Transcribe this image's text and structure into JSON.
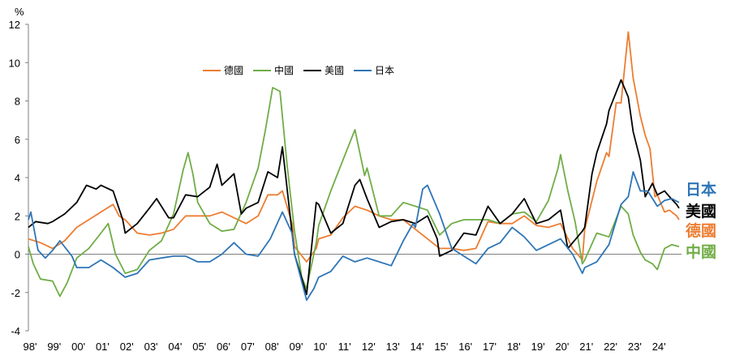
{
  "chart_data": {
    "type": "line",
    "ylabel": "%",
    "ylim": [
      -4,
      12
    ],
    "yticks": [
      -4,
      -2,
      0,
      2,
      4,
      6,
      8,
      10,
      12
    ],
    "categories": [
      "98'",
      "99'",
      "00'",
      "01'",
      "02'",
      "03'",
      "04'",
      "05'",
      "06'",
      "07'",
      "08'",
      "09'",
      "10'",
      "11'",
      "12'",
      "13'",
      "14'",
      "15'",
      "16'",
      "17'",
      "18'",
      "19'",
      "20'",
      "21'",
      "22'",
      "23'",
      "24'"
    ],
    "xlim": [
      1998.0,
      2025.0
    ],
    "grid": false,
    "legend": "top-left",
    "series": [
      {
        "name": "德國",
        "color": "#ED7D31",
        "points": [
          [
            1998.0,
            0.8
          ],
          [
            1998.5,
            0.6
          ],
          [
            1999.0,
            0.3
          ],
          [
            1999.5,
            0.7
          ],
          [
            2000.0,
            1.4
          ],
          [
            2000.5,
            1.8
          ],
          [
            2001.0,
            2.2
          ],
          [
            2001.5,
            2.6
          ],
          [
            2001.75,
            2.0
          ],
          [
            2002.0,
            1.8
          ],
          [
            2002.5,
            1.1
          ],
          [
            2003.0,
            1.0
          ],
          [
            2003.5,
            1.1
          ],
          [
            2004.0,
            1.3
          ],
          [
            2004.5,
            2.0
          ],
          [
            2005.0,
            2.0
          ],
          [
            2005.5,
            2.0
          ],
          [
            2006.0,
            2.2
          ],
          [
            2006.5,
            1.9
          ],
          [
            2007.0,
            1.6
          ],
          [
            2007.5,
            2.0
          ],
          [
            2007.9,
            3.1
          ],
          [
            2008.3,
            3.1
          ],
          [
            2008.5,
            3.3
          ],
          [
            2008.9,
            1.6
          ],
          [
            2009.0,
            0.4
          ],
          [
            2009.5,
            -0.4
          ],
          [
            2009.9,
            0.3
          ],
          [
            2010.0,
            0.8
          ],
          [
            2010.5,
            1.0
          ],
          [
            2011.0,
            1.9
          ],
          [
            2011.5,
            2.5
          ],
          [
            2012.0,
            2.3
          ],
          [
            2012.5,
            2.0
          ],
          [
            2013.0,
            1.8
          ],
          [
            2013.5,
            1.8
          ],
          [
            2014.0,
            1.3
          ],
          [
            2014.5,
            0.8
          ],
          [
            2015.0,
            0.3
          ],
          [
            2015.5,
            0.3
          ],
          [
            2016.0,
            0.2
          ],
          [
            2016.5,
            0.3
          ],
          [
            2017.0,
            1.7
          ],
          [
            2017.5,
            1.6
          ],
          [
            2018.0,
            1.6
          ],
          [
            2018.5,
            2.0
          ],
          [
            2019.0,
            1.5
          ],
          [
            2019.5,
            1.4
          ],
          [
            2020.0,
            1.6
          ],
          [
            2020.5,
            0.3
          ],
          [
            2020.9,
            -0.3
          ],
          [
            2021.0,
            1.3
          ],
          [
            2021.5,
            3.8
          ],
          [
            2021.9,
            5.3
          ],
          [
            2022.0,
            5.1
          ],
          [
            2022.3,
            7.9
          ],
          [
            2022.5,
            7.9
          ],
          [
            2022.8,
            11.6
          ],
          [
            2023.0,
            9.2
          ],
          [
            2023.3,
            7.2
          ],
          [
            2023.5,
            6.2
          ],
          [
            2023.7,
            5.5
          ],
          [
            2023.9,
            3.0
          ],
          [
            2024.0,
            3.1
          ],
          [
            2024.3,
            2.2
          ],
          [
            2024.5,
            2.3
          ],
          [
            2024.8,
            2.0
          ],
          [
            2024.9,
            1.8
          ]
        ]
      },
      {
        "name": "中國",
        "color": "#70AD47",
        "points": [
          [
            1998.0,
            0.4
          ],
          [
            1998.2,
            -0.5
          ],
          [
            1998.5,
            -1.3
          ],
          [
            1999.0,
            -1.4
          ],
          [
            1999.3,
            -2.2
          ],
          [
            1999.6,
            -1.5
          ],
          [
            2000.0,
            -0.2
          ],
          [
            2000.5,
            0.3
          ],
          [
            2001.0,
            1.1
          ],
          [
            2001.3,
            1.6
          ],
          [
            2001.6,
            0.0
          ],
          [
            2002.0,
            -1.0
          ],
          [
            2002.5,
            -0.8
          ],
          [
            2003.0,
            0.2
          ],
          [
            2003.5,
            0.7
          ],
          [
            2004.0,
            2.1
          ],
          [
            2004.4,
            4.4
          ],
          [
            2004.6,
            5.3
          ],
          [
            2004.8,
            4.2
          ],
          [
            2005.0,
            2.7
          ],
          [
            2005.5,
            1.6
          ],
          [
            2006.0,
            1.2
          ],
          [
            2006.5,
            1.3
          ],
          [
            2007.0,
            2.7
          ],
          [
            2007.5,
            4.5
          ],
          [
            2007.8,
            6.5
          ],
          [
            2008.1,
            8.7
          ],
          [
            2008.4,
            8.5
          ],
          [
            2008.7,
            4.6
          ],
          [
            2009.0,
            1.2
          ],
          [
            2009.3,
            -1.2
          ],
          [
            2009.5,
            -1.8
          ],
          [
            2009.9,
            0.6
          ],
          [
            2010.0,
            1.5
          ],
          [
            2010.5,
            3.3
          ],
          [
            2011.0,
            4.9
          ],
          [
            2011.5,
            6.5
          ],
          [
            2011.9,
            4.1
          ],
          [
            2012.0,
            4.5
          ],
          [
            2012.5,
            2.0
          ],
          [
            2013.0,
            2.0
          ],
          [
            2013.5,
            2.7
          ],
          [
            2014.0,
            2.5
          ],
          [
            2014.5,
            2.3
          ],
          [
            2015.0,
            1.0
          ],
          [
            2015.5,
            1.6
          ],
          [
            2016.0,
            1.8
          ],
          [
            2016.5,
            1.8
          ],
          [
            2017.0,
            1.8
          ],
          [
            2017.5,
            1.6
          ],
          [
            2018.0,
            2.1
          ],
          [
            2018.5,
            2.2
          ],
          [
            2019.0,
            1.7
          ],
          [
            2019.5,
            2.8
          ],
          [
            2019.9,
            4.5
          ],
          [
            2020.0,
            5.2
          ],
          [
            2020.3,
            3.3
          ],
          [
            2020.6,
            1.7
          ],
          [
            2020.9,
            -0.5
          ],
          [
            2021.0,
            -0.3
          ],
          [
            2021.5,
            1.1
          ],
          [
            2022.0,
            0.9
          ],
          [
            2022.5,
            2.5
          ],
          [
            2022.8,
            2.1
          ],
          [
            2023.0,
            1.0
          ],
          [
            2023.3,
            0.1
          ],
          [
            2023.5,
            -0.3
          ],
          [
            2023.8,
            -0.5
          ],
          [
            2024.0,
            -0.8
          ],
          [
            2024.3,
            0.3
          ],
          [
            2024.6,
            0.5
          ],
          [
            2024.9,
            0.4
          ]
        ]
      },
      {
        "name": "美國",
        "color": "#000000",
        "points": [
          [
            1998.0,
            1.4
          ],
          [
            1998.3,
            1.7
          ],
          [
            1998.8,
            1.6
          ],
          [
            1999.0,
            1.7
          ],
          [
            1999.5,
            2.1
          ],
          [
            2000.0,
            2.7
          ],
          [
            2000.4,
            3.6
          ],
          [
            2000.8,
            3.4
          ],
          [
            2001.0,
            3.6
          ],
          [
            2001.5,
            3.3
          ],
          [
            2001.9,
            1.8
          ],
          [
            2002.0,
            1.1
          ],
          [
            2002.5,
            1.6
          ],
          [
            2003.0,
            2.4
          ],
          [
            2003.3,
            2.9
          ],
          [
            2003.8,
            1.9
          ],
          [
            2004.0,
            1.9
          ],
          [
            2004.5,
            3.1
          ],
          [
            2005.0,
            3.0
          ],
          [
            2005.5,
            3.5
          ],
          [
            2005.8,
            4.7
          ],
          [
            2006.0,
            3.6
          ],
          [
            2006.5,
            4.2
          ],
          [
            2006.8,
            2.1
          ],
          [
            2007.0,
            2.4
          ],
          [
            2007.5,
            2.7
          ],
          [
            2007.9,
            4.3
          ],
          [
            2008.3,
            4.0
          ],
          [
            2008.5,
            5.6
          ],
          [
            2008.9,
            1.1
          ],
          [
            2009.0,
            0.0
          ],
          [
            2009.5,
            -2.1
          ],
          [
            2009.9,
            2.7
          ],
          [
            2010.0,
            2.6
          ],
          [
            2010.5,
            1.1
          ],
          [
            2011.0,
            1.6
          ],
          [
            2011.5,
            3.6
          ],
          [
            2011.7,
            3.9
          ],
          [
            2012.0,
            2.9
          ],
          [
            2012.5,
            1.4
          ],
          [
            2013.0,
            1.7
          ],
          [
            2013.5,
            1.8
          ],
          [
            2014.0,
            1.6
          ],
          [
            2014.5,
            2.0
          ],
          [
            2014.9,
            0.8
          ],
          [
            2015.0,
            -0.1
          ],
          [
            2015.5,
            0.2
          ],
          [
            2016.0,
            1.1
          ],
          [
            2016.5,
            1.0
          ],
          [
            2017.0,
            2.5
          ],
          [
            2017.5,
            1.6
          ],
          [
            2018.0,
            2.1
          ],
          [
            2018.5,
            2.9
          ],
          [
            2019.0,
            1.6
          ],
          [
            2019.5,
            1.8
          ],
          [
            2020.0,
            2.3
          ],
          [
            2020.3,
            0.3
          ],
          [
            2020.9,
            1.2
          ],
          [
            2021.0,
            1.4
          ],
          [
            2021.3,
            4.2
          ],
          [
            2021.5,
            5.3
          ],
          [
            2021.9,
            6.8
          ],
          [
            2022.0,
            7.5
          ],
          [
            2022.5,
            9.1
          ],
          [
            2022.8,
            8.2
          ],
          [
            2023.0,
            6.4
          ],
          [
            2023.3,
            4.9
          ],
          [
            2023.5,
            3.0
          ],
          [
            2023.8,
            3.7
          ],
          [
            2024.0,
            3.1
          ],
          [
            2024.3,
            3.3
          ],
          [
            2024.5,
            3.0
          ],
          [
            2024.8,
            2.6
          ],
          [
            2024.9,
            2.4
          ]
        ]
      },
      {
        "name": "日本",
        "color": "#2E75B6",
        "points": [
          [
            1998.0,
            1.8
          ],
          [
            1998.1,
            2.2
          ],
          [
            1998.4,
            0.2
          ],
          [
            1998.7,
            -0.2
          ],
          [
            1999.0,
            0.2
          ],
          [
            1999.3,
            0.7
          ],
          [
            1999.8,
            -0.1
          ],
          [
            2000.0,
            -0.7
          ],
          [
            2000.5,
            -0.7
          ],
          [
            2001.0,
            -0.3
          ],
          [
            2001.5,
            -0.7
          ],
          [
            2002.0,
            -1.2
          ],
          [
            2002.5,
            -1.0
          ],
          [
            2003.0,
            -0.3
          ],
          [
            2003.5,
            -0.2
          ],
          [
            2004.0,
            -0.1
          ],
          [
            2004.5,
            -0.1
          ],
          [
            2005.0,
            -0.4
          ],
          [
            2005.5,
            -0.4
          ],
          [
            2006.0,
            0.0
          ],
          [
            2006.5,
            0.6
          ],
          [
            2007.0,
            0.0
          ],
          [
            2007.5,
            -0.1
          ],
          [
            2008.0,
            0.8
          ],
          [
            2008.5,
            2.2
          ],
          [
            2008.9,
            1.1
          ],
          [
            2009.0,
            0.0
          ],
          [
            2009.5,
            -2.4
          ],
          [
            2009.8,
            -1.8
          ],
          [
            2010.0,
            -1.2
          ],
          [
            2010.5,
            -0.9
          ],
          [
            2011.0,
            -0.1
          ],
          [
            2011.5,
            -0.4
          ],
          [
            2012.0,
            -0.2
          ],
          [
            2012.5,
            -0.4
          ],
          [
            2013.0,
            -0.6
          ],
          [
            2013.5,
            0.7
          ],
          [
            2013.9,
            1.6
          ],
          [
            2014.0,
            1.4
          ],
          [
            2014.3,
            3.4
          ],
          [
            2014.5,
            3.6
          ],
          [
            2014.9,
            2.4
          ],
          [
            2015.0,
            2.1
          ],
          [
            2015.5,
            0.3
          ],
          [
            2016.0,
            -0.1
          ],
          [
            2016.5,
            -0.5
          ],
          [
            2017.0,
            0.3
          ],
          [
            2017.5,
            0.6
          ],
          [
            2018.0,
            1.4
          ],
          [
            2018.5,
            0.9
          ],
          [
            2019.0,
            0.2
          ],
          [
            2019.5,
            0.5
          ],
          [
            2020.0,
            0.8
          ],
          [
            2020.5,
            0.0
          ],
          [
            2020.9,
            -1.0
          ],
          [
            2021.0,
            -0.7
          ],
          [
            2021.5,
            -0.4
          ],
          [
            2022.0,
            0.5
          ],
          [
            2022.5,
            2.6
          ],
          [
            2022.8,
            3.0
          ],
          [
            2023.0,
            4.3
          ],
          [
            2023.3,
            3.3
          ],
          [
            2023.6,
            3.3
          ],
          [
            2024.0,
            2.5
          ],
          [
            2024.3,
            2.8
          ],
          [
            2024.6,
            2.9
          ],
          [
            2024.9,
            2.7
          ]
        ]
      }
    ],
    "legend_entries": [
      "德國",
      "中國",
      "美國",
      "日本"
    ],
    "end_labels": [
      {
        "text": "日本",
        "color": "#2E75B6",
        "value": 3.8
      },
      {
        "text": "美國",
        "color": "#000000",
        "value": 2.6
      },
      {
        "text": "德國",
        "color": "#ED7D31",
        "value": 1.6
      },
      {
        "text": "中國",
        "color": "#70AD47",
        "value": 0.4
      }
    ]
  }
}
